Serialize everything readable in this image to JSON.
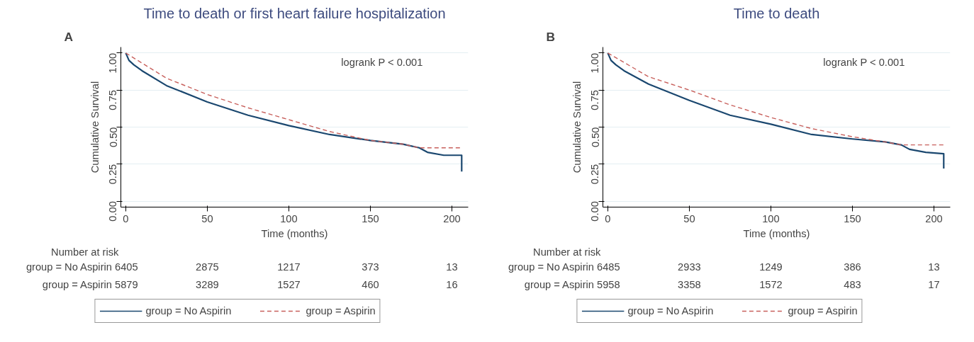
{
  "chart_data": [
    {
      "type": "line",
      "title": "Time to death or first heart failure hospitalization",
      "xlabel": "Time (months)",
      "ylabel": "Cumulative Survival",
      "xlim": [
        -3,
        210
      ],
      "ylim": [
        -0.04,
        1.04
      ],
      "xticks": [
        0,
        50,
        100,
        150,
        200
      ],
      "yticks": [
        {
          "value": 0,
          "label": "0.00"
        },
        {
          "value": 0.25,
          "label": "0.25"
        },
        {
          "value": 0.5,
          "label": "0.50"
        },
        {
          "value": 0.75,
          "label": "0.75"
        },
        {
          "value": 1,
          "label": "1.00"
        }
      ],
      "grid": "y",
      "legend": "bottom",
      "annotations": [
        "A",
        "logrank P  < 0.001",
        "Number at risk",
        "group = No Aspirin 6405",
        "2875",
        "1217",
        "373",
        "13",
        "group = Aspirin 5879",
        "3289",
        "1527",
        "460",
        "16"
      ],
      "series": [
        {
          "name": "group = No Aspirin",
          "color": "#1a476f",
          "line_style": "solid",
          "x": [
            0,
            2,
            5,
            10,
            25,
            50,
            75,
            100,
            125,
            150,
            170,
            180,
            185,
            195,
            206,
            206
          ],
          "values": [
            1.0,
            0.95,
            0.92,
            0.88,
            0.78,
            0.67,
            0.58,
            0.51,
            0.45,
            0.41,
            0.385,
            0.36,
            0.33,
            0.31,
            0.31,
            0.2
          ]
        },
        {
          "name": "group = Aspirin",
          "color": "#c8605c",
          "line_style": "dashed",
          "x": [
            0,
            25,
            50,
            75,
            100,
            125,
            150,
            170,
            180,
            206
          ],
          "values": [
            1.0,
            0.83,
            0.72,
            0.63,
            0.55,
            0.47,
            0.41,
            0.385,
            0.36,
            0.36
          ]
        }
      ]
    },
    {
      "type": "line",
      "title": "Time to death",
      "xlabel": "Time (months)",
      "ylabel": "Cumulative Survival",
      "xlim": [
        -3,
        210
      ],
      "ylim": [
        -0.04,
        1.04
      ],
      "xticks": [
        0,
        50,
        100,
        150,
        200
      ],
      "yticks": [
        {
          "value": 0,
          "label": "0.00"
        },
        {
          "value": 0.25,
          "label": "0.25"
        },
        {
          "value": 0.5,
          "label": "0.50"
        },
        {
          "value": 0.75,
          "label": "0.75"
        },
        {
          "value": 1,
          "label": "1.00"
        }
      ],
      "grid": "y",
      "legend": "bottom",
      "annotations": [
        "B",
        "logrank P  < 0.001",
        "Number at risk",
        "group = No Aspirin 6485",
        "2933",
        "1249",
        "386",
        "13",
        "group = Aspirin 5958",
        "3358",
        "1572",
        "483",
        "17"
      ],
      "series": [
        {
          "name": "group = No Aspirin",
          "color": "#1a476f",
          "line_style": "solid",
          "x": [
            0,
            2,
            5,
            10,
            25,
            50,
            75,
            100,
            125,
            150,
            170,
            180,
            185,
            195,
            206,
            206
          ],
          "values": [
            1.0,
            0.95,
            0.92,
            0.88,
            0.79,
            0.68,
            0.58,
            0.52,
            0.45,
            0.42,
            0.4,
            0.38,
            0.35,
            0.33,
            0.32,
            0.22
          ]
        },
        {
          "name": "group = Aspirin",
          "color": "#c8605c",
          "line_style": "dashed",
          "x": [
            0,
            25,
            50,
            75,
            100,
            125,
            150,
            170,
            180,
            206
          ],
          "values": [
            1.0,
            0.84,
            0.75,
            0.65,
            0.565,
            0.49,
            0.435,
            0.4,
            0.38,
            0.38
          ]
        }
      ]
    }
  ]
}
